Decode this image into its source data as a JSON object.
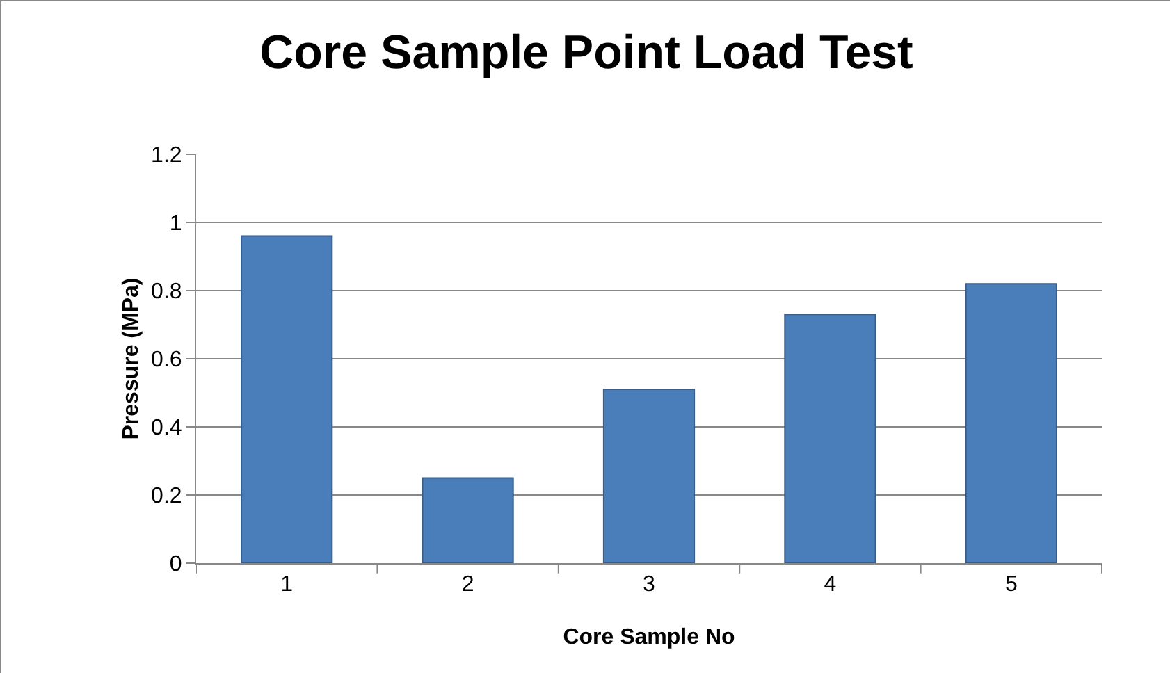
{
  "chart_data": {
    "type": "bar",
    "title": "Core Sample Point Load Test",
    "xlabel": "Core Sample No",
    "ylabel": "Pressure (MPa)",
    "categories": [
      "1",
      "2",
      "3",
      "4",
      "5"
    ],
    "values": [
      0.96,
      0.25,
      0.51,
      0.73,
      0.82
    ],
    "color": "#4a7ebb",
    "ylim": [
      0,
      1.2
    ],
    "yticks": [
      0,
      0.2,
      0.4,
      0.6,
      0.8,
      1,
      1.2
    ],
    "grid": "y"
  }
}
